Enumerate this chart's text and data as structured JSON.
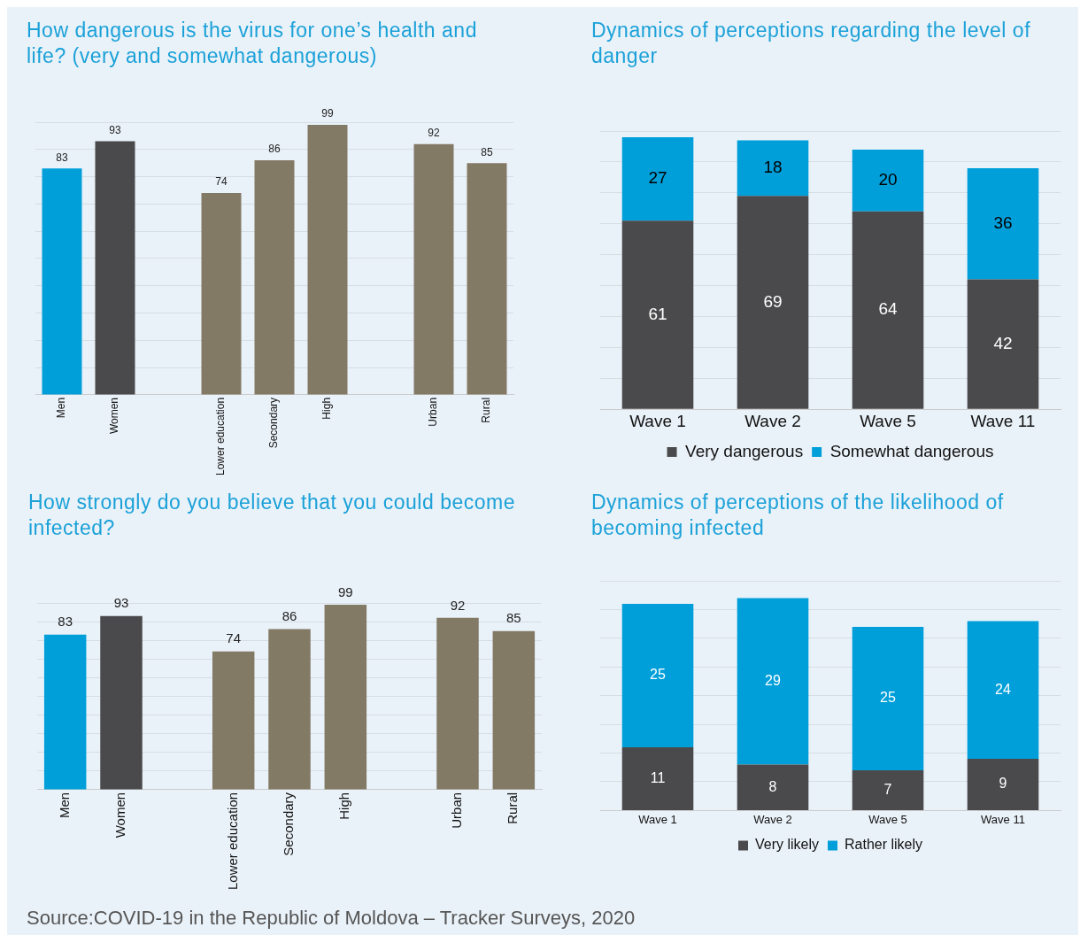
{
  "chart_data": [
    {
      "type": "bar",
      "title": "How dangerous is the virus for one’s health and life? (very and somewhat dangerous)",
      "categories": [
        "Men",
        "Women",
        null,
        "Lower education",
        "Secondary",
        "High",
        null,
        "Urban",
        "Rural"
      ],
      "values": [
        83,
        93,
        null,
        74,
        86,
        99,
        null,
        92,
        85
      ],
      "colors": [
        "#009fda",
        "#4a4a4c",
        null,
        "#837a66",
        "#837a66",
        "#837a66",
        null,
        "#837a66",
        "#837a66"
      ],
      "tick_labels": "x",
      "grid": "y",
      "data_labels": true
    },
    {
      "type": "bar",
      "title": "Dynamics of perceptions regarding the level of danger",
      "categories": [
        "Wave 1",
        "Wave 2",
        "Wave 5",
        "Wave 11"
      ],
      "stacked": true,
      "series": [
        {
          "name": "Very dangerous",
          "color": "#4a4a4c",
          "values": [
            61,
            69,
            64,
            42
          ]
        },
        {
          "name": "Somewhat dangerous",
          "color": "#009fda",
          "values": [
            27,
            18,
            20,
            36
          ]
        }
      ],
      "tick_labels": "x",
      "grid": "y",
      "data_labels": true,
      "legend": "bottom"
    },
    {
      "type": "bar",
      "title": "How strongly do you believe that you could become infected?",
      "categories": [
        "Men",
        "Women",
        null,
        "Lower education",
        "Secondary",
        "High",
        null,
        "Urban",
        "Rural"
      ],
      "values": [
        83,
        93,
        null,
        74,
        86,
        99,
        null,
        92,
        85
      ],
      "colors": [
        "#009fda",
        "#4a4a4c",
        null,
        "#837a66",
        "#837a66",
        "#837a66",
        null,
        "#837a66",
        "#837a66"
      ],
      "tick_labels": "x",
      "grid": "y",
      "data_labels": true
    },
    {
      "type": "bar",
      "title": "Dynamics of perceptions of the likelihood of becoming infected",
      "categories": [
        "Wave 1",
        "Wave 2",
        "Wave 5",
        "Wave 11"
      ],
      "stacked": true,
      "series": [
        {
          "name": "Very likely",
          "color": "#4a4a4c",
          "values": [
            11,
            8,
            7,
            9
          ]
        },
        {
          "name": "Rather likely",
          "color": "#009fda",
          "values": [
            25,
            29,
            25,
            24
          ]
        }
      ],
      "tick_labels": "x",
      "grid": "y",
      "data_labels": true,
      "legend": "bottom",
      "annotations": [
        "Source:COVID-19 in the Republic of Moldova – Tracker Surveys, 2020"
      ]
    }
  ]
}
